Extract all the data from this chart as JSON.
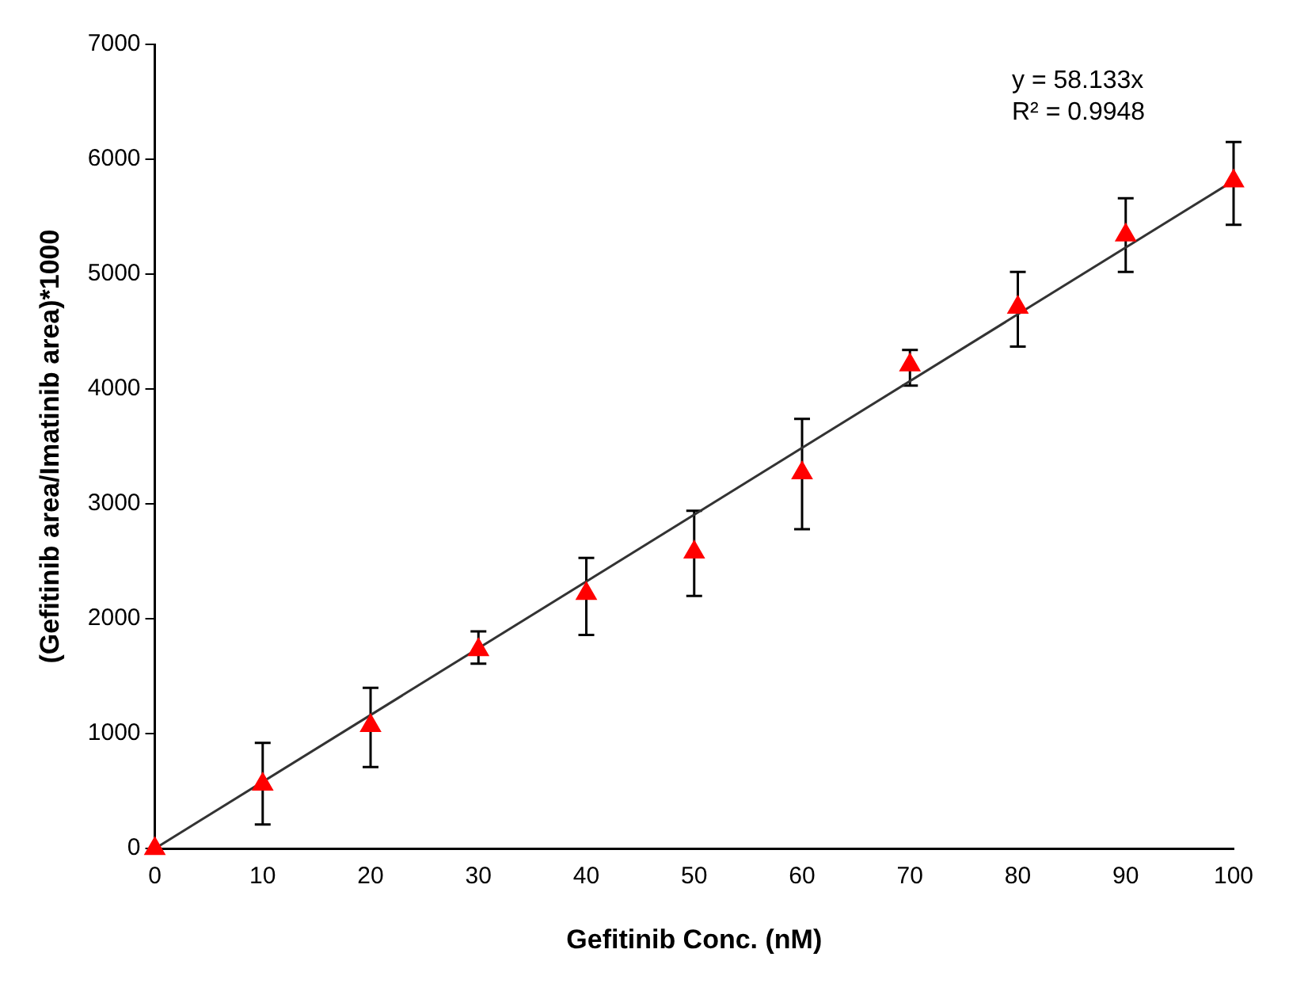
{
  "chart_data": {
    "type": "scatter",
    "xlabel": "Gefitinib Conc. (nM)",
    "ylabel": "(Gefitinib area/Imatinib area)*1000",
    "x": [
      0,
      10,
      20,
      30,
      40,
      50,
      60,
      70,
      80,
      90,
      100
    ],
    "series": [
      {
        "color": "#ff0000",
        "marker": "triangle",
        "values": [
          0,
          560,
          1070,
          1730,
          2220,
          2580,
          3270,
          4210,
          4710,
          5340,
          5810
        ],
        "errors": [
          null,
          [
            210,
            920
          ],
          [
            710,
            1400
          ],
          [
            1610,
            1890
          ],
          [
            1860,
            2530
          ],
          [
            2200,
            2940
          ],
          [
            2780,
            3740
          ],
          [
            4030,
            4340
          ],
          [
            4370,
            5020
          ],
          [
            5020,
            5660
          ],
          [
            5430,
            6150
          ]
        ]
      },
      {
        "type": "line",
        "color": "#333333",
        "marker": "none",
        "line_style": "solid",
        "x": [
          0,
          100
        ],
        "values": [
          0,
          5813
        ]
      }
    ],
    "xlim": [
      0,
      100
    ],
    "xticks": [
      0,
      10,
      20,
      30,
      40,
      50,
      60,
      70,
      80,
      90,
      100
    ],
    "ylim": [
      0,
      7000
    ],
    "yticks": [
      0,
      1000,
      2000,
      3000,
      4000,
      5000,
      6000,
      7000
    ],
    "grid": false,
    "legend": false,
    "annotations": [
      "y = 58.133x",
      "R² = 0.9948"
    ]
  }
}
